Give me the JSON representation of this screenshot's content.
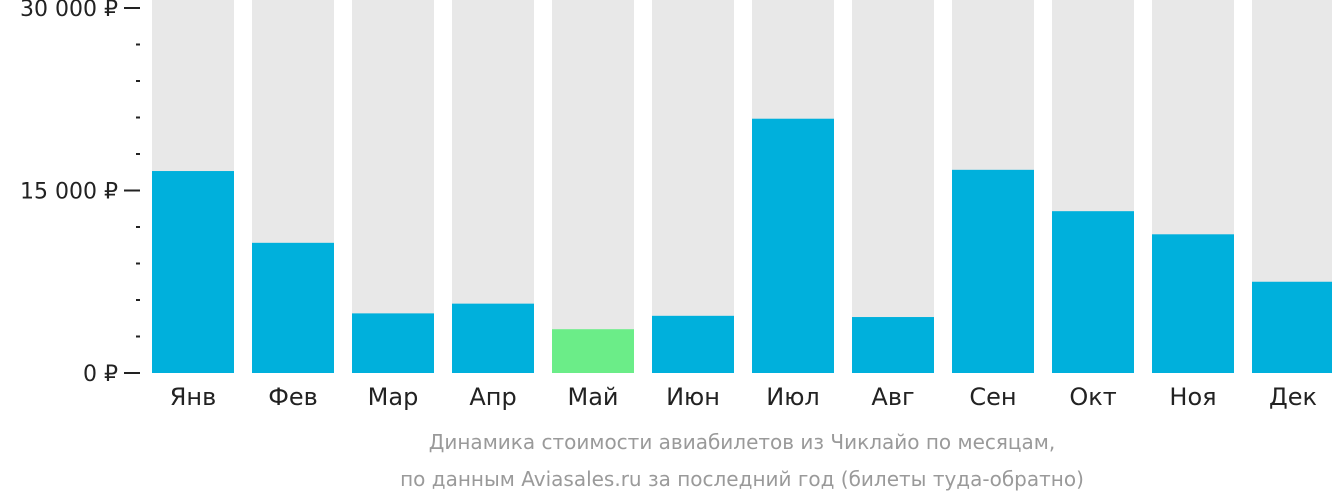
{
  "colors": {
    "bar": "#00b0dc",
    "highlight": "#6bed88",
    "background_bar": "#e8e8e8",
    "axis": "#222222",
    "caption": "#9a9a9a"
  },
  "caption": {
    "line1": "Динамика стоимости авиабилетов из Чиклайо по месяцам,",
    "line2": "по данным Aviasales.ru за последний год (билеты туда-обратно)"
  },
  "chart_data": {
    "type": "bar",
    "categories": [
      "Янв",
      "Фев",
      "Мар",
      "Апр",
      "Май",
      "Июн",
      "Июл",
      "Авг",
      "Сен",
      "Окт",
      "Ноя",
      "Дек"
    ],
    "values": [
      16600,
      10700,
      4900,
      5700,
      3600,
      4700,
      20900,
      4600,
      16700,
      13300,
      11400,
      7500
    ],
    "highlight_index": 4,
    "ylim": [
      0,
      30000
    ],
    "y_ticks": [
      {
        "value": 0,
        "label": "0 ₽"
      },
      {
        "value": 15000,
        "label": "15 000 ₽"
      },
      {
        "value": 30000,
        "label": "30 000 ₽"
      }
    ],
    "y_minor_step": 3000,
    "grid": false,
    "legend": "none"
  }
}
